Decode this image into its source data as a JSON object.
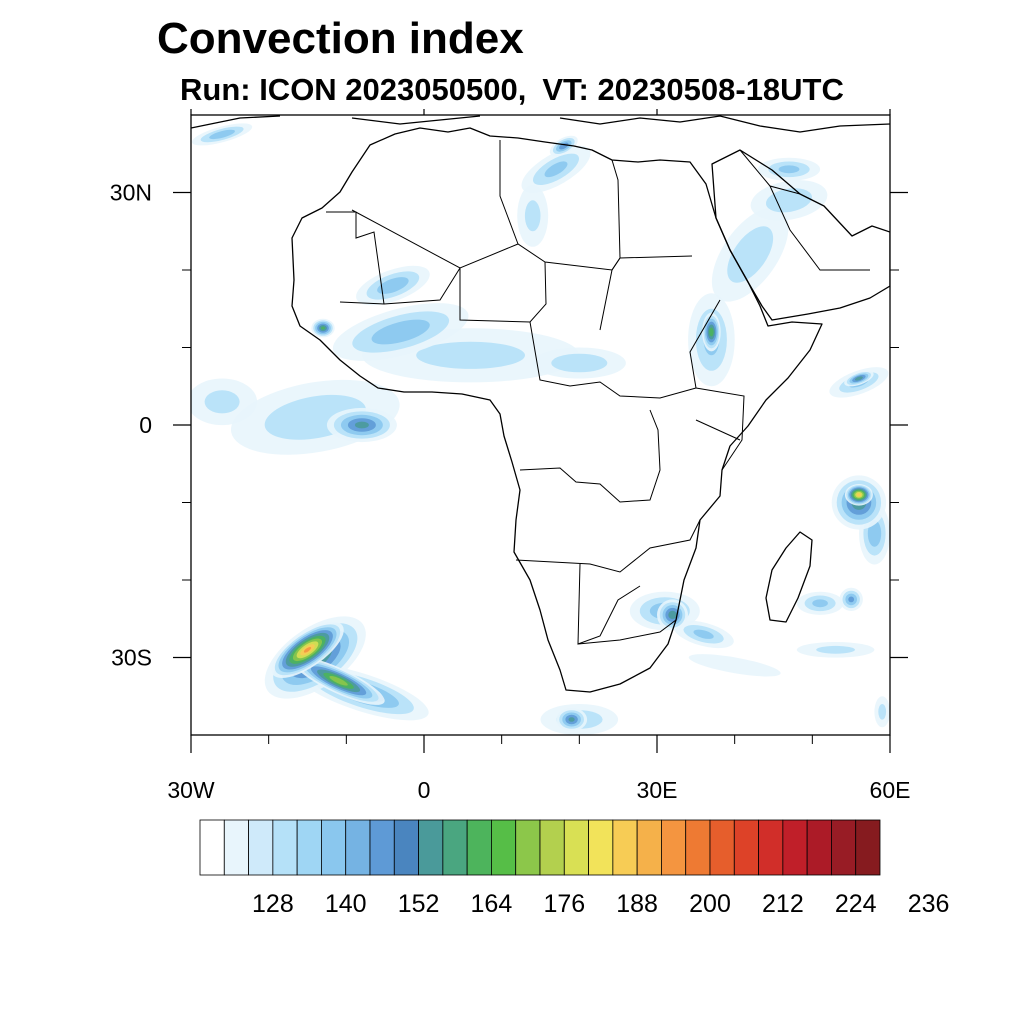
{
  "title": "Convection index",
  "subtitle": {
    "run": "Run: ICON 2023050500,",
    "vt": "VT: 20230508-18UTC"
  },
  "map": {
    "lon_range": [
      -30,
      60
    ],
    "lat_range": [
      -40,
      40
    ],
    "lon_ticks": [
      {
        "value": -30,
        "label": "30W"
      },
      {
        "value": 0,
        "label": "0"
      },
      {
        "value": 30,
        "label": "30E"
      },
      {
        "value": 60,
        "label": "60E"
      }
    ],
    "lat_ticks": [
      {
        "value": 30,
        "label": "30N"
      },
      {
        "value": 0,
        "label": "0"
      },
      {
        "value": -30,
        "label": "30S"
      }
    ],
    "minor_lon": [
      -20,
      -10,
      10,
      20,
      40,
      50
    ],
    "minor_lat": [
      20,
      10,
      -10,
      -20
    ],
    "convection_areas": [
      {
        "lon": -15,
        "lat": -29,
        "level": 19,
        "rx": 2.2,
        "ry": 5.5,
        "rot": 55
      },
      {
        "lon": -11,
        "lat": -33,
        "level": 14,
        "rx": 6.5,
        "ry": 1.6,
        "rot": 25
      },
      {
        "lon": -14,
        "lat": -30,
        "level": 11,
        "rx": 3.8,
        "ry": 7.5,
        "rot": 55
      },
      {
        "lon": -8,
        "lat": -34.5,
        "level": 8,
        "rx": 9,
        "ry": 2.4,
        "rot": 18
      },
      {
        "lon": -8,
        "lat": 0,
        "level": 9,
        "rx": 4.5,
        "ry": 2.2,
        "rot": 0
      },
      {
        "lon": -14,
        "lat": 1,
        "level": 4,
        "rx": 11,
        "ry": 4.5,
        "rot": -10
      },
      {
        "lon": -26,
        "lat": 3,
        "level": 3,
        "rx": 4.5,
        "ry": 3,
        "rot": 0
      },
      {
        "lon": -3,
        "lat": 12,
        "level": 6,
        "rx": 9,
        "ry": 3,
        "rot": -15
      },
      {
        "lon": -13,
        "lat": 12.5,
        "level": 11,
        "rx": 1.5,
        "ry": 1.2,
        "rot": 0
      },
      {
        "lon": -4,
        "lat": 18,
        "level": 6,
        "rx": 5,
        "ry": 2,
        "rot": -20
      },
      {
        "lon": 6,
        "lat": 9,
        "level": 3,
        "rx": 14,
        "ry": 3.5,
        "rot": 0
      },
      {
        "lon": 20,
        "lat": 8,
        "level": 4,
        "rx": 6,
        "ry": 2,
        "rot": 0
      },
      {
        "lon": 37,
        "lat": 12,
        "level": 12,
        "rx": 1.2,
        "ry": 2.5,
        "rot": 0
      },
      {
        "lon": 37,
        "lat": 11,
        "level": 5,
        "rx": 3,
        "ry": 6,
        "rot": 0
      },
      {
        "lon": 42,
        "lat": 22,
        "level": 4,
        "rx": 3.5,
        "ry": 7,
        "rot": 35
      },
      {
        "lon": 47,
        "lat": 29,
        "level": 4,
        "rx": 5,
        "ry": 2.5,
        "rot": -10
      },
      {
        "lon": 47,
        "lat": 33,
        "level": 5,
        "rx": 4,
        "ry": 1.5,
        "rot": 0
      },
      {
        "lon": 18,
        "lat": 36,
        "level": 8,
        "rx": 2,
        "ry": 1,
        "rot": -30
      },
      {
        "lon": 17,
        "lat": 33,
        "level": 5,
        "rx": 5,
        "ry": 2,
        "rot": -30
      },
      {
        "lon": 14,
        "lat": 27,
        "level": 3,
        "rx": 2,
        "ry": 4,
        "rot": 0
      },
      {
        "lon": -26,
        "lat": 37.5,
        "level": 6,
        "rx": 4,
        "ry": 1,
        "rot": -15
      },
      {
        "lon": 56,
        "lat": -9,
        "level": 18,
        "rx": 1.8,
        "ry": 1.4,
        "rot": 0
      },
      {
        "lon": 56,
        "lat": -10,
        "level": 10,
        "rx": 3.5,
        "ry": 3.5,
        "rot": 0
      },
      {
        "lon": 58,
        "lat": -14,
        "level": 6,
        "rx": 2,
        "ry": 4,
        "rot": 0
      },
      {
        "lon": 56,
        "lat": 6,
        "level": 10,
        "rx": 2,
        "ry": 0.8,
        "rot": -20
      },
      {
        "lon": 56,
        "lat": 5.5,
        "level": 5,
        "rx": 4,
        "ry": 1.5,
        "rot": -20
      },
      {
        "lon": 32,
        "lat": -24.5,
        "level": 10,
        "rx": 2,
        "ry": 2,
        "rot": 0
      },
      {
        "lon": 31,
        "lat": -24,
        "level": 6,
        "rx": 4.5,
        "ry": 2.5,
        "rot": 0
      },
      {
        "lon": 36,
        "lat": -27,
        "level": 5,
        "rx": 4,
        "ry": 1.5,
        "rot": 15
      },
      {
        "lon": 19,
        "lat": -38,
        "level": 9,
        "rx": 2,
        "ry": 1.5,
        "rot": 0
      },
      {
        "lon": 20,
        "lat": -38,
        "level": 4,
        "rx": 5,
        "ry": 2,
        "rot": 0
      },
      {
        "lon": 51,
        "lat": -23,
        "level": 5,
        "rx": 3,
        "ry": 1.5,
        "rot": 0
      },
      {
        "lon": 55,
        "lat": -22.5,
        "level": 7,
        "rx": 1.5,
        "ry": 1.5,
        "rot": 0
      },
      {
        "lon": 53,
        "lat": -29,
        "level": 3,
        "rx": 5,
        "ry": 1,
        "rot": 0
      },
      {
        "lon": 59,
        "lat": -37,
        "level": 3,
        "rx": 1,
        "ry": 2,
        "rot": 0
      },
      {
        "lon": 40,
        "lat": -31,
        "level": 2,
        "rx": 6,
        "ry": 1,
        "rot": 10
      }
    ]
  },
  "colorbar": {
    "colors": [
      "#ffffff",
      "#e8f5fc",
      "#cfeafa",
      "#b5e1f8",
      "#9fd6f4",
      "#8ac7ee",
      "#75b3e3",
      "#5e9ad6",
      "#4a85bf",
      "#4a9a9a",
      "#4aa680",
      "#4db45c",
      "#56be47",
      "#8cc74a",
      "#b3d04e",
      "#d9e054",
      "#f2e35a",
      "#f7cc55",
      "#f5b14a",
      "#f49540",
      "#ee7a33",
      "#e65e2c",
      "#dd4228",
      "#d12e29",
      "#c01f29",
      "#ac1b27",
      "#981c25",
      "#861b1f"
    ],
    "labels": [
      "128",
      "140",
      "152",
      "164",
      "176",
      "188",
      "200",
      "212",
      "224",
      "236"
    ]
  }
}
